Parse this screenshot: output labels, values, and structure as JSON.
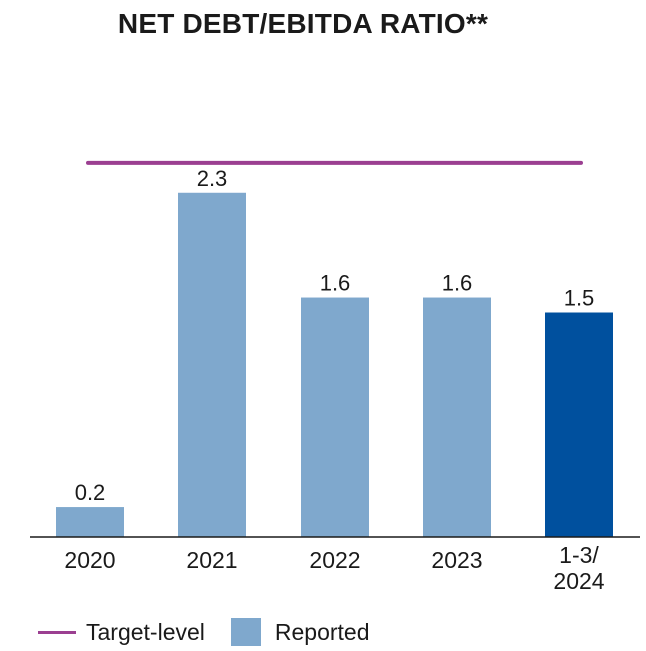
{
  "chart_data": {
    "type": "bar",
    "title": "NET DEBT/EBITDA RATIO**",
    "categories": [
      "2020",
      "2021",
      "2022",
      "2023",
      "1-3/\n2024"
    ],
    "values": [
      0.2,
      2.3,
      1.6,
      1.6,
      1.5
    ],
    "value_labels": [
      "0.2",
      "2.3",
      "1.6",
      "1.6",
      "1.5"
    ],
    "target_level": 2.5,
    "ylim": [
      0,
      3.0
    ],
    "grid": false,
    "legend": {
      "position": "bottom-left",
      "items": [
        {
          "label": "Target-level",
          "kind": "line",
          "color": "#9b3f91"
        },
        {
          "label": "Reported",
          "kind": "bar",
          "color": "#7fa8cd"
        }
      ]
    },
    "colors": {
      "reported": "#7fa8cd",
      "highlight": "#00509e",
      "target": "#9b3f91",
      "axis": "#1a1a1a"
    },
    "highlight_index": 4
  }
}
